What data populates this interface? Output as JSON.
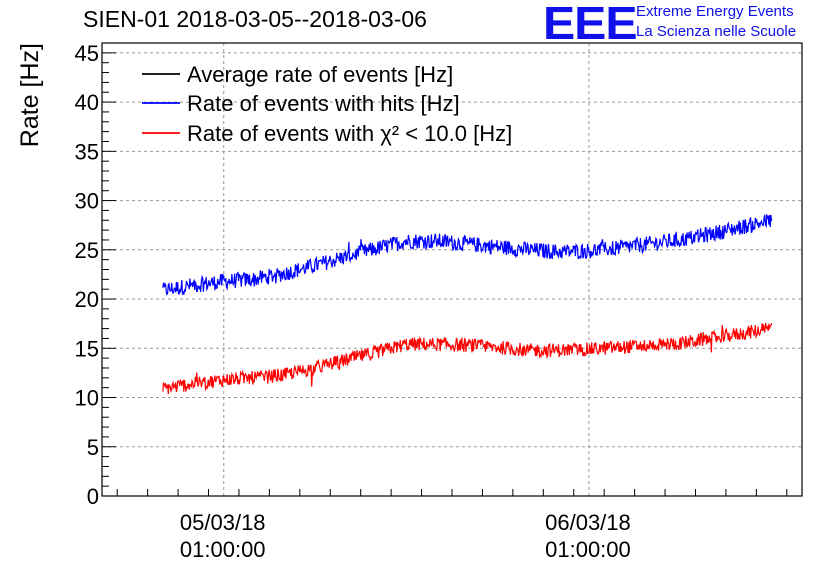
{
  "header": {
    "title": "SIEN-01 2018-03-05--2018-03-06",
    "logo_mark": "EEE",
    "logo_line1": "Extreme Energy Events",
    "logo_line2": "La Scienza nelle Scuole"
  },
  "chart_data": {
    "type": "line",
    "title": "SIEN-01 2018-03-05--2018-03-06",
    "xlabel": "",
    "ylabel": "Rate [Hz]",
    "ylim": [
      0,
      46
    ],
    "yticks": [
      0,
      5,
      10,
      15,
      20,
      25,
      30,
      35,
      40,
      45
    ],
    "xlim_hours": [
      -7,
      39
    ],
    "xticks": [
      {
        "hour": 1,
        "date": "05/03/18",
        "time": "01:00:00"
      },
      {
        "hour": 25,
        "date": "06/03/18",
        "time": "01:00:00"
      }
    ],
    "grid": true,
    "legend_position": "top-left",
    "series": [
      {
        "name": "Average rate of events [Hz]",
        "color": "#000000",
        "x_hours": [],
        "values": []
      },
      {
        "name": "Rate of events with hits [Hz]",
        "color": "#0000ff",
        "x_hours": [
          -3,
          -1,
          1,
          3,
          5,
          7,
          9,
          11,
          13,
          15,
          17,
          19,
          21,
          23,
          25,
          27,
          29,
          31,
          33,
          35,
          37
        ],
        "values": [
          20.9,
          21.4,
          21.8,
          22.0,
          22.6,
          23.4,
          24.3,
          25.1,
          25.9,
          25.9,
          25.6,
          25.3,
          25.0,
          24.8,
          24.9,
          25.2,
          25.6,
          26.0,
          26.6,
          27.3,
          28.0
        ],
        "noise": 0.8
      },
      {
        "name": "Rate of events with χ² < 10.0 [Hz]",
        "color": "#ff0000",
        "x_hours": [
          -3,
          -1,
          1,
          3,
          5,
          7,
          9,
          11,
          13,
          15,
          17,
          19,
          21,
          23,
          25,
          27,
          29,
          31,
          33,
          35,
          37
        ],
        "values": [
          10.9,
          11.4,
          11.8,
          12.0,
          12.3,
          13.0,
          13.8,
          14.6,
          15.4,
          15.4,
          15.3,
          15.1,
          14.8,
          14.8,
          14.9,
          15.1,
          15.3,
          15.5,
          16.0,
          16.5,
          17.0
        ],
        "noise": 0.7
      }
    ]
  }
}
